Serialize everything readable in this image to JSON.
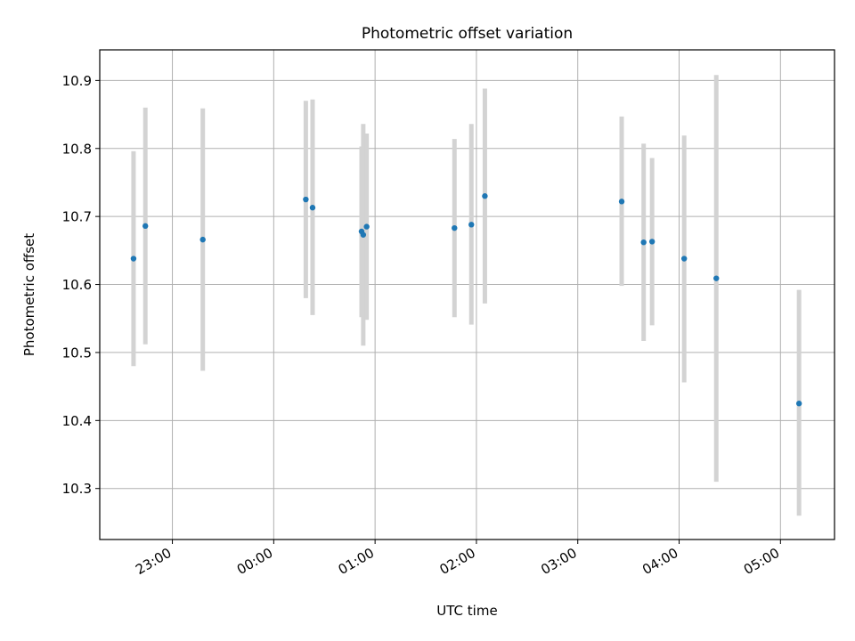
{
  "chart_data": {
    "type": "scatter",
    "title": "Photometric offset variation",
    "xlabel": "UTC time",
    "ylabel": "Photometric offset",
    "x_axis": {
      "kind": "time",
      "range": [
        "22:17",
        "05:32"
      ],
      "ticks": [
        "23:00",
        "00:00",
        "01:00",
        "02:00",
        "03:00",
        "04:00",
        "05:00"
      ]
    },
    "y_axis": {
      "range": [
        10.225,
        10.945
      ],
      "ticks": [
        "10.3",
        "10.4",
        "10.5",
        "10.6",
        "10.7",
        "10.8",
        "10.9"
      ]
    },
    "grid": true,
    "series": [
      {
        "marker_color": "#1f77b4",
        "errorbar_color": "#d3d3d3",
        "points": [
          {
            "x": "22:37",
            "y": 10.638,
            "y_low": 10.48,
            "y_high": 10.796
          },
          {
            "x": "22:44",
            "y": 10.686,
            "y_low": 10.512,
            "y_high": 10.86
          },
          {
            "x": "23:18",
            "y": 10.666,
            "y_low": 10.473,
            "y_high": 10.859
          },
          {
            "x": "00:19",
            "y": 10.725,
            "y_low": 10.58,
            "y_high": 10.87
          },
          {
            "x": "00:23",
            "y": 10.713,
            "y_low": 10.555,
            "y_high": 10.872
          },
          {
            "x": "00:52",
            "y": 10.678,
            "y_low": 10.552,
            "y_high": 10.803
          },
          {
            "x": "00:53",
            "y": 10.673,
            "y_low": 10.51,
            "y_high": 10.836
          },
          {
            "x": "00:55",
            "y": 10.685,
            "y_low": 10.548,
            "y_high": 10.822
          },
          {
            "x": "01:47",
            "y": 10.683,
            "y_low": 10.552,
            "y_high": 10.814
          },
          {
            "x": "01:57",
            "y": 10.688,
            "y_low": 10.541,
            "y_high": 10.836
          },
          {
            "x": "02:05",
            "y": 10.73,
            "y_low": 10.572,
            "y_high": 10.888
          },
          {
            "x": "03:26",
            "y": 10.722,
            "y_low": 10.598,
            "y_high": 10.847
          },
          {
            "x": "03:39",
            "y": 10.662,
            "y_low": 10.517,
            "y_high": 10.807
          },
          {
            "x": "03:44",
            "y": 10.663,
            "y_low": 10.54,
            "y_high": 10.786
          },
          {
            "x": "04:03",
            "y": 10.638,
            "y_low": 10.456,
            "y_high": 10.819
          },
          {
            "x": "04:22",
            "y": 10.609,
            "y_low": 10.31,
            "y_high": 10.908
          },
          {
            "x": "05:11",
            "y": 10.425,
            "y_low": 10.26,
            "y_high": 10.592
          }
        ]
      }
    ]
  }
}
